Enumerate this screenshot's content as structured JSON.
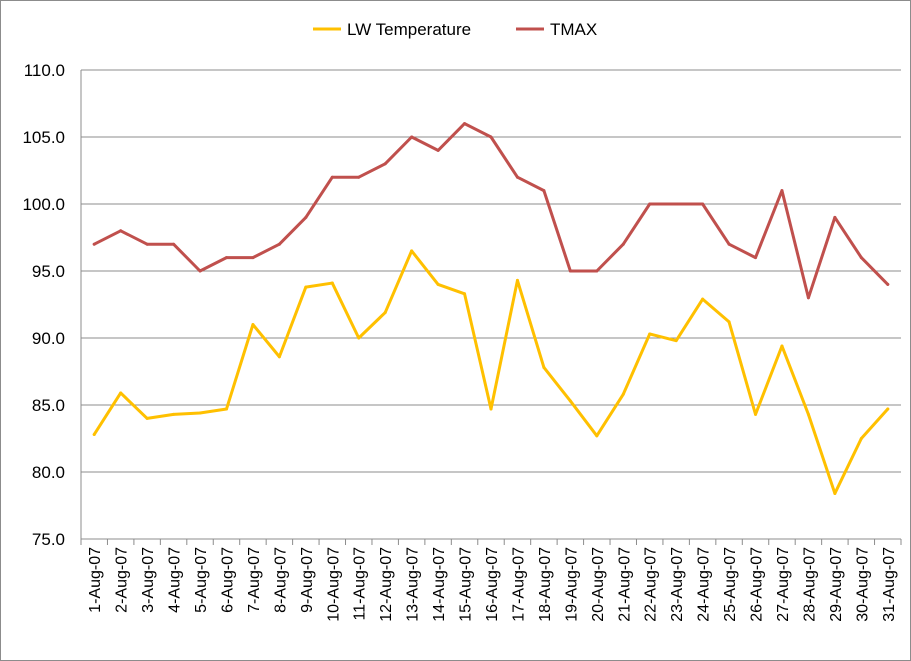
{
  "chart_data": {
    "type": "line",
    "title": "",
    "xlabel": "",
    "ylabel": "",
    "ylim": [
      75,
      110
    ],
    "y_ticks": [
      "75.0",
      "80.0",
      "85.0",
      "90.0",
      "95.0",
      "100.0",
      "105.0",
      "110.0"
    ],
    "grid": true,
    "legend_position": "top",
    "categories": [
      "1-Aug-07",
      "2-Aug-07",
      "3-Aug-07",
      "4-Aug-07",
      "5-Aug-07",
      "6-Aug-07",
      "7-Aug-07",
      "8-Aug-07",
      "9-Aug-07",
      "10-Aug-07",
      "11-Aug-07",
      "12-Aug-07",
      "13-Aug-07",
      "14-Aug-07",
      "15-Aug-07",
      "16-Aug-07",
      "17-Aug-07",
      "18-Aug-07",
      "19-Aug-07",
      "20-Aug-07",
      "21-Aug-07",
      "22-Aug-07",
      "23-Aug-07",
      "24-Aug-07",
      "25-Aug-07",
      "26-Aug-07",
      "27-Aug-07",
      "28-Aug-07",
      "29-Aug-07",
      "30-Aug-07",
      "31-Aug-07"
    ],
    "series": [
      {
        "name": "LW Temperature",
        "color": "#FFC000",
        "values": [
          82.8,
          85.9,
          84.0,
          84.3,
          84.4,
          84.7,
          91.0,
          88.6,
          93.8,
          94.1,
          90.0,
          91.9,
          96.5,
          94.0,
          93.3,
          84.7,
          94.3,
          87.8,
          85.3,
          82.7,
          85.8,
          90.3,
          89.8,
          92.9,
          91.2,
          84.3,
          89.4,
          84.3,
          78.4,
          82.5,
          84.7
        ]
      },
      {
        "name": "TMAX",
        "color": "#C0504D",
        "values": [
          97,
          98,
          97,
          97,
          95,
          96,
          96,
          97,
          99,
          102,
          102,
          103,
          105,
          104,
          106,
          105,
          102,
          101,
          95,
          95,
          97,
          100,
          100,
          100,
          97,
          96,
          101,
          93,
          99,
          96,
          94
        ]
      }
    ]
  }
}
